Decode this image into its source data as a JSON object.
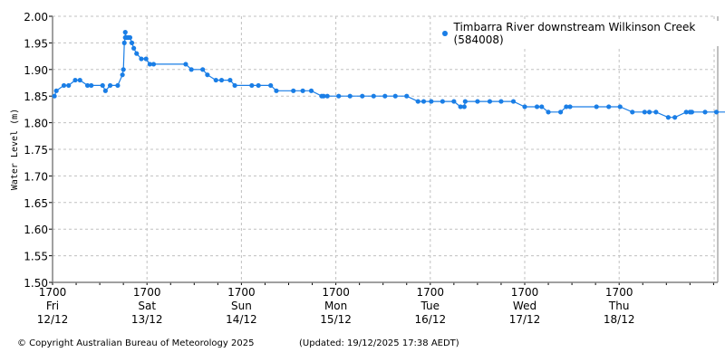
{
  "chart_data": {
    "type": "line",
    "title": "",
    "xlabel": "",
    "ylabel": "Water Level (m)",
    "ylim": [
      1.5,
      2.0
    ],
    "yticks": [
      "2.00",
      "1.95",
      "1.90",
      "1.85",
      "1.80",
      "1.75",
      "1.70",
      "1.65",
      "1.60",
      "1.55",
      "1.50"
    ],
    "xticks": [
      {
        "time": "1700",
        "day": "Fri",
        "date": "12/12"
      },
      {
        "time": "1700",
        "day": "Sat",
        "date": "13/12"
      },
      {
        "time": "1700",
        "day": "Sun",
        "date": "14/12"
      },
      {
        "time": "1700",
        "day": "Mon",
        "date": "15/12"
      },
      {
        "time": "1700",
        "day": "Tue",
        "date": "16/12"
      },
      {
        "time": "1700",
        "day": "Wed",
        "date": "17/12"
      },
      {
        "time": "1700",
        "day": "Thu",
        "date": "18/12"
      }
    ],
    "xlim_days": [
      0,
      7.05
    ],
    "grid": true,
    "legend_position": "top-right",
    "series": [
      {
        "name": "Timbarra River downstream Wilkinson Creek (584008)",
        "color": "#1a7ee6",
        "x_days": [
          0.02,
          0.04,
          0.12,
          0.17,
          0.24,
          0.29,
          0.37,
          0.41,
          0.53,
          0.56,
          0.61,
          0.69,
          0.74,
          0.75,
          0.76,
          0.77,
          0.77,
          0.78,
          0.8,
          0.82,
          0.84,
          0.86,
          0.89,
          0.94,
          0.99,
          1.03,
          1.07,
          1.41,
          1.47,
          1.59,
          1.64,
          1.73,
          1.79,
          1.88,
          1.93,
          2.11,
          2.18,
          2.31,
          2.37,
          2.55,
          2.65,
          2.74,
          2.85,
          2.87,
          2.91,
          3.03,
          3.15,
          3.28,
          3.4,
          3.52,
          3.63,
          3.75,
          3.87,
          3.93,
          4.01,
          4.13,
          4.25,
          4.32,
          4.36,
          4.37,
          4.5,
          4.63,
          4.75,
          4.88,
          5.0,
          5.13,
          5.18,
          5.25,
          5.38,
          5.44,
          5.48,
          5.76,
          5.89,
          6.01,
          6.14,
          6.27,
          6.32,
          6.39,
          6.52,
          6.59,
          6.71,
          6.75,
          6.77,
          6.91,
          7.03,
          7.16,
          7.28,
          7.4,
          7.53
        ],
        "values": [
          1.85,
          1.86,
          1.87,
          1.87,
          1.88,
          1.88,
          1.87,
          1.87,
          1.87,
          1.86,
          1.87,
          1.87,
          1.89,
          1.9,
          1.95,
          1.96,
          1.97,
          1.96,
          1.96,
          1.96,
          1.95,
          1.94,
          1.93,
          1.92,
          1.92,
          1.91,
          1.91,
          1.91,
          1.9,
          1.9,
          1.89,
          1.88,
          1.88,
          1.88,
          1.87,
          1.87,
          1.87,
          1.87,
          1.86,
          1.86,
          1.86,
          1.86,
          1.85,
          1.85,
          1.85,
          1.85,
          1.85,
          1.85,
          1.85,
          1.85,
          1.85,
          1.85,
          1.84,
          1.84,
          1.84,
          1.84,
          1.84,
          1.83,
          1.83,
          1.84,
          1.84,
          1.84,
          1.84,
          1.84,
          1.83,
          1.83,
          1.83,
          1.82,
          1.82,
          1.83,
          1.83,
          1.83,
          1.83,
          1.83,
          1.82,
          1.82,
          1.82,
          1.82,
          1.81,
          1.81,
          1.82,
          1.82,
          1.82,
          1.82,
          1.82,
          1.82,
          1.82,
          1.82,
          1.82
        ]
      }
    ]
  },
  "footer": {
    "copyright": "© Copyright Australian Bureau of Meteorology 2025",
    "updated": "(Updated: 19/12/2025 17:38 AEDT)"
  }
}
